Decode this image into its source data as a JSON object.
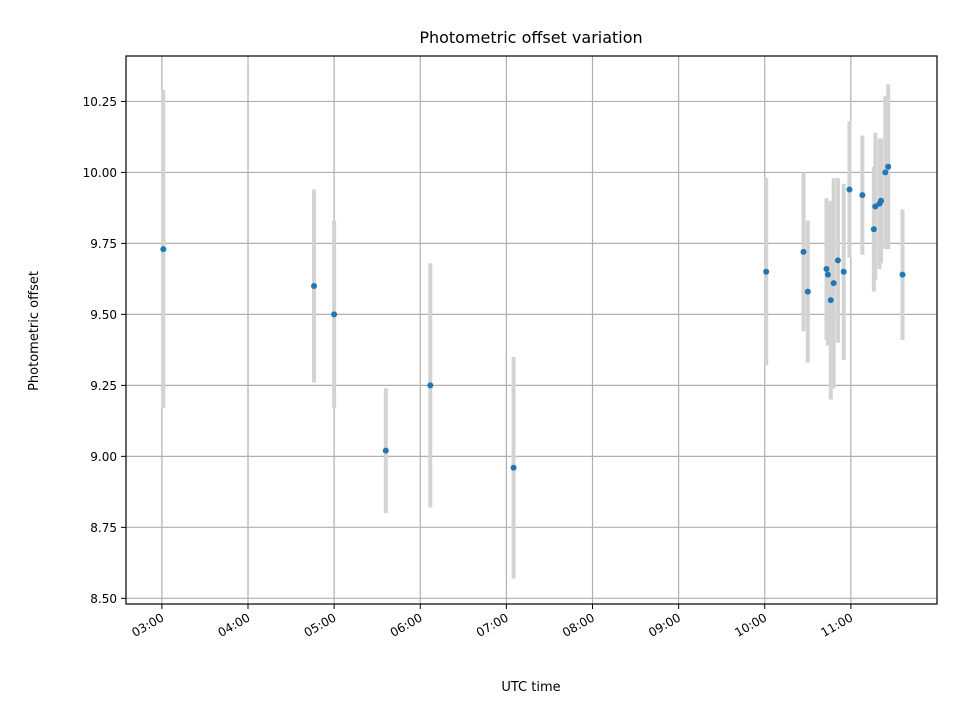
{
  "chart_data": {
    "type": "scatter",
    "title": "Photometric offset variation",
    "xlabel": "UTC time",
    "ylabel": "Photometric offset",
    "xlim": [
      "02:35",
      "12:00"
    ],
    "ylim": [
      8.48,
      10.41
    ],
    "grid": true,
    "x_ticks": [
      "03:00",
      "04:00",
      "05:00",
      "06:00",
      "07:00",
      "08:00",
      "09:00",
      "10:00",
      "11:00"
    ],
    "y_ticks": [
      "8.50",
      "8.75",
      "9.00",
      "9.25",
      "9.50",
      "9.75",
      "10.00",
      "10.25"
    ],
    "colors": {
      "point": "#1f77b4",
      "errorbar": "#d3d3d3",
      "grid": "#b0b0b0"
    },
    "points": [
      {
        "x": "03:01",
        "y": 9.73,
        "err": 0.56
      },
      {
        "x": "04:46",
        "y": 9.6,
        "err": 0.34
      },
      {
        "x": "05:00",
        "y": 9.5,
        "err": 0.33
      },
      {
        "x": "05:36",
        "y": 9.02,
        "err": 0.22
      },
      {
        "x": "06:07",
        "y": 9.25,
        "err": 0.43
      },
      {
        "x": "07:05",
        "y": 8.96,
        "err": 0.39
      },
      {
        "x": "10:01",
        "y": 9.65,
        "err": 0.33
      },
      {
        "x": "10:27",
        "y": 9.72,
        "err": 0.28
      },
      {
        "x": "10:30",
        "y": 9.58,
        "err": 0.25
      },
      {
        "x": "10:43",
        "y": 9.66,
        "err": 0.25
      },
      {
        "x": "10:44",
        "y": 9.64,
        "err": 0.25
      },
      {
        "x": "10:46",
        "y": 9.55,
        "err": 0.35
      },
      {
        "x": "10:48",
        "y": 9.61,
        "err": 0.37
      },
      {
        "x": "10:51",
        "y": 9.69,
        "err": 0.29
      },
      {
        "x": "10:55",
        "y": 9.65,
        "err": 0.31
      },
      {
        "x": "10:59",
        "y": 9.94,
        "err": 0.24
      },
      {
        "x": "11:08",
        "y": 9.92,
        "err": 0.21
      },
      {
        "x": "11:16",
        "y": 9.8,
        "err": 0.22
      },
      {
        "x": "11:17",
        "y": 9.88,
        "err": 0.26
      },
      {
        "x": "11:20",
        "y": 9.89,
        "err": 0.23
      },
      {
        "x": "11:21",
        "y": 9.9,
        "err": 0.22
      },
      {
        "x": "11:24",
        "y": 10.0,
        "err": 0.27
      },
      {
        "x": "11:26",
        "y": 10.02,
        "err": 0.29
      },
      {
        "x": "11:36",
        "y": 9.64,
        "err": 0.23
      }
    ]
  }
}
